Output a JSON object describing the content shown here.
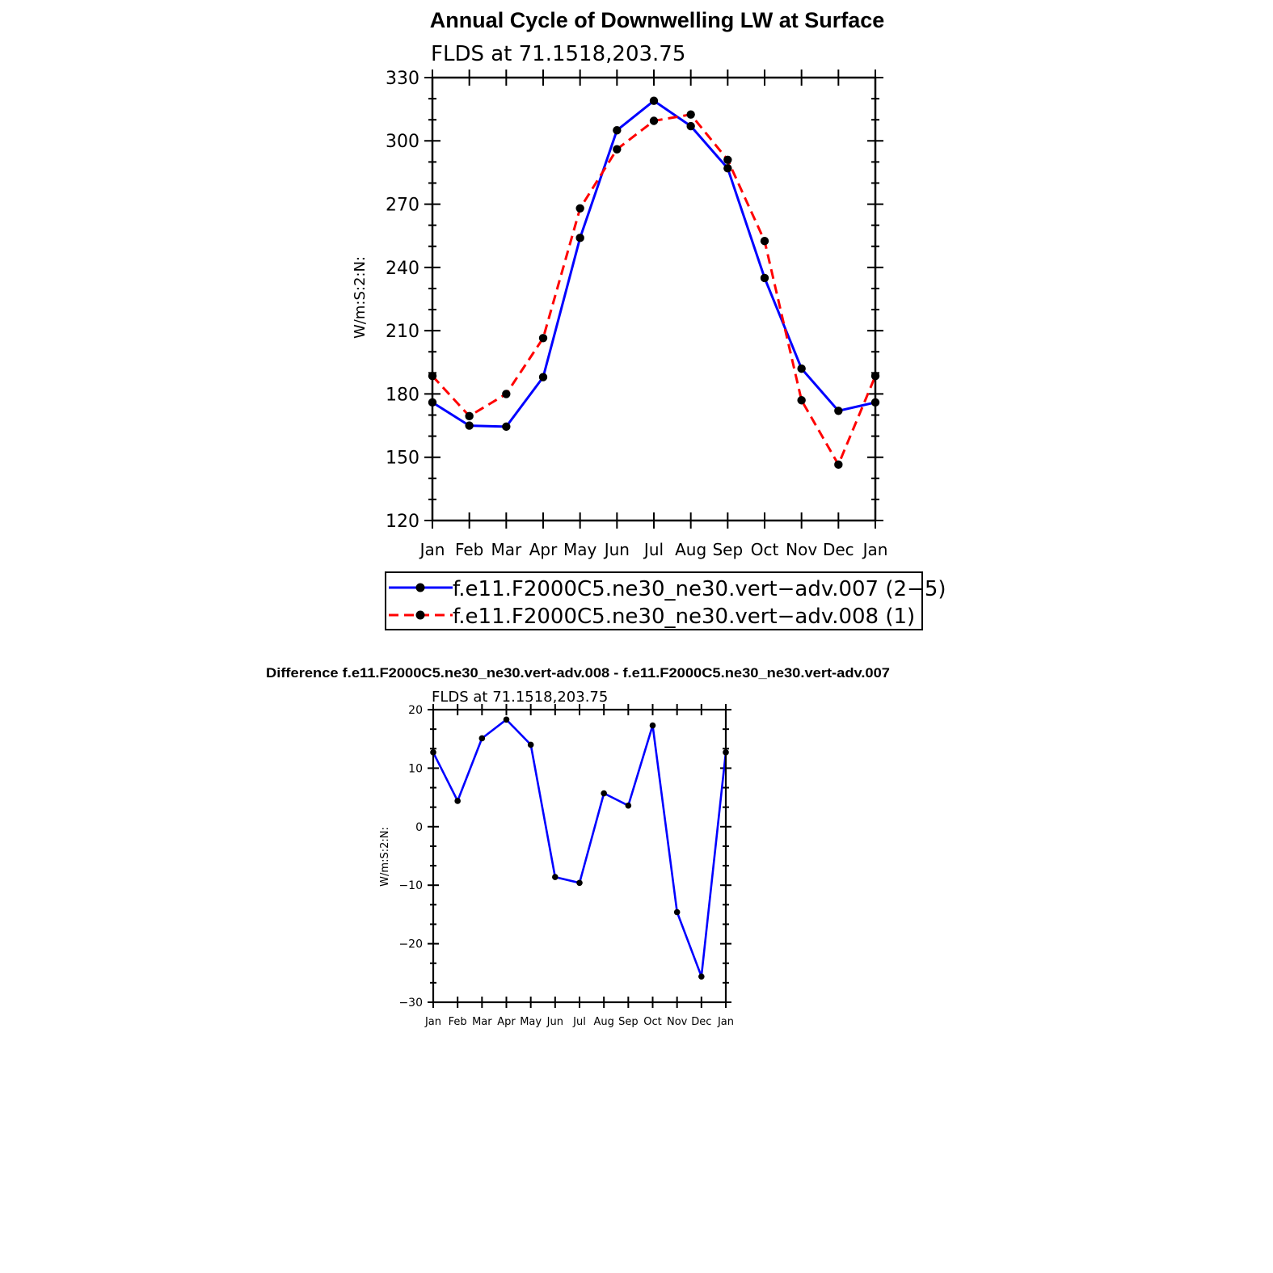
{
  "main_title": "Annual Cycle of Downwelling LW at Surface",
  "diff_title": "Difference f.e11.F2000C5.ne30_ne30.vert-adv.008 - f.e11.F2000C5.ne30_ne30.vert-adv.007",
  "chart_data": [
    {
      "type": "line",
      "title": "Annual Cycle of Downwelling LW at Surface",
      "subtitle": "FLDS at 71.1518,203.75",
      "ylabel": "W/m:S:2:N:",
      "xlabel": "",
      "categories": [
        "Jan",
        "Feb",
        "Mar",
        "Apr",
        "May",
        "Jun",
        "Jul",
        "Aug",
        "Sep",
        "Oct",
        "Nov",
        "Dec",
        "Jan"
      ],
      "ylim": [
        120,
        330
      ],
      "yticks": [
        120,
        150,
        180,
        210,
        240,
        270,
        300,
        330
      ],
      "grid": false,
      "legend_position": "bottom",
      "series": [
        {
          "name": "f.e11.F2000C5.ne30_ne30.vert−adv.007 (2−5)",
          "color": "#0000ff",
          "dash": "solid",
          "values": [
            176,
            165,
            164.5,
            188,
            254,
            305,
            319,
            307,
            287,
            235,
            192,
            172,
            176
          ]
        },
        {
          "name": "f.e11.F2000C5.ne30_ne30.vert−adv.008 (1)",
          "color": "#ff0000",
          "dash": "dashed",
          "values": [
            188.5,
            169.5,
            180,
            206.5,
            268,
            296,
            309.5,
            312.5,
            291,
            252.5,
            177,
            146.5,
            188.5
          ]
        }
      ]
    },
    {
      "type": "line",
      "title": "Difference f.e11.F2000C5.ne30_ne30.vert-adv.008 - f.e11.F2000C5.ne30_ne30.vert-adv.007",
      "subtitle": "FLDS at 71.1518,203.75",
      "ylabel": "W/m:S:2:N:",
      "xlabel": "",
      "categories": [
        "Jan",
        "Feb",
        "Mar",
        "Apr",
        "May",
        "Jun",
        "Jul",
        "Aug",
        "Sep",
        "Oct",
        "Nov",
        "Dec",
        "Jan"
      ],
      "ylim": [
        -30,
        20
      ],
      "yticks": [
        -30,
        -20,
        -10,
        0,
        10,
        20
      ],
      "ytick_labels": [
        "−30",
        "−20",
        "−10",
        "0",
        "10",
        "20"
      ],
      "grid": false,
      "series": [
        {
          "name": "",
          "color": "#0000ff",
          "dash": "solid",
          "values": [
            12.7,
            4.4,
            15.1,
            18.3,
            14.0,
            -8.6,
            -9.6,
            5.7,
            3.6,
            17.3,
            -14.6,
            -25.6,
            12.7
          ]
        }
      ]
    }
  ]
}
